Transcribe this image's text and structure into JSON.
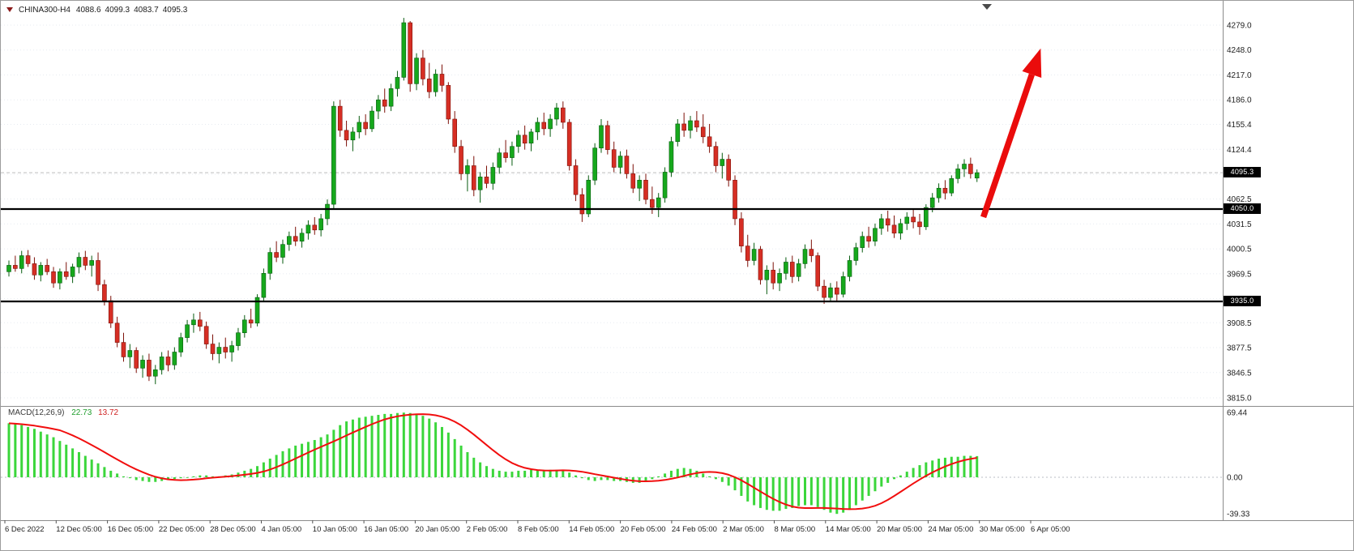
{
  "header": {
    "symbol": "CHINA300-H4",
    "open": "4088.6",
    "high": "4099.3",
    "low": "4083.7",
    "close": "4095.3"
  },
  "macd_panel": {
    "label": "MACD(12,26,9)",
    "macd_value": "22.73",
    "signal_value": "13.72"
  },
  "price_tags": {
    "current": "4095.3",
    "resistance": "4050.0",
    "support": "3935.0"
  },
  "colors": {
    "bull": "#16a81c",
    "bull_border": "#085c10",
    "bear": "#d62e24",
    "bear_border": "#7d1008",
    "histogram": "#3bd63b",
    "signal": "#f10e0e",
    "hline": "#000000",
    "arrow": "#ea0c0c",
    "grid": "#e7ebf1",
    "axis_line": "#8c8c8c",
    "current_price_line": "#bdbdbd",
    "tick_text": "#1e1e1e"
  },
  "chart_data": {
    "type": "candlestick",
    "symbol": "CHINA300",
    "timeframe": "H4",
    "title": "CHINA300-H4  4088.6 4099.3 4083.7 4095.3",
    "price_axis_ticks": [
      4279.0,
      4248.0,
      4217.0,
      4186.0,
      4155.4,
      4124.4,
      4093.4,
      4062.5,
      4031.5,
      4000.5,
      3969.5,
      3938.5,
      3908.5,
      3877.5,
      3846.5,
      3815.0
    ],
    "price_range": {
      "min": 3815.0,
      "max": 4279.0
    },
    "current_price": 4095.3,
    "horizontal_lines": [
      4050.0,
      3935.0
    ],
    "time_axis_labels": [
      "6 Dec 2022",
      "12 Dec 05:00",
      "16 Dec 05:00",
      "22 Dec 05:00",
      "28 Dec 05:00",
      "4 Jan 05:00",
      "10 Jan 05:00",
      "16 Jan 05:00",
      "20 Jan 05:00",
      "2 Feb 05:00",
      "8 Feb 05:00",
      "14 Feb 05:00",
      "20 Feb 05:00",
      "24 Feb 05:00",
      "2 Mar 05:00",
      "8 Mar 05:00",
      "14 Mar 05:00",
      "20 Mar 05:00",
      "24 Mar 05:00",
      "30 Mar 05:00",
      "6 Apr 05:00"
    ],
    "candles_ohlc": [
      [
        3972,
        3986,
        3966,
        3980
      ],
      [
        3980,
        3992,
        3972,
        3976
      ],
      [
        3976,
        3998,
        3970,
        3992
      ],
      [
        3992,
        3999,
        3978,
        3982
      ],
      [
        3982,
        3990,
        3962,
        3968
      ],
      [
        3968,
        3984,
        3960,
        3980
      ],
      [
        3980,
        3988,
        3968,
        3972
      ],
      [
        3972,
        3978,
        3952,
        3958
      ],
      [
        3958,
        3976,
        3950,
        3972
      ],
      [
        3972,
        3984,
        3962,
        3966
      ],
      [
        3966,
        3982,
        3958,
        3978
      ],
      [
        3978,
        3996,
        3970,
        3990
      ],
      [
        3990,
        3998,
        3974,
        3980
      ],
      [
        3980,
        3992,
        3966,
        3986
      ],
      [
        3986,
        3996,
        3948,
        3956
      ],
      [
        3956,
        3962,
        3930,
        3936
      ],
      [
        3936,
        3942,
        3902,
        3908
      ],
      [
        3908,
        3916,
        3878,
        3884
      ],
      [
        3884,
        3896,
        3860,
        3866
      ],
      [
        3866,
        3882,
        3852,
        3874
      ],
      [
        3874,
        3878,
        3846,
        3852
      ],
      [
        3852,
        3868,
        3840,
        3862
      ],
      [
        3862,
        3870,
        3836,
        3842
      ],
      [
        3842,
        3856,
        3832,
        3850
      ],
      [
        3850,
        3872,
        3844,
        3866
      ],
      [
        3866,
        3874,
        3848,
        3856
      ],
      [
        3856,
        3878,
        3850,
        3872
      ],
      [
        3872,
        3896,
        3866,
        3890
      ],
      [
        3890,
        3912,
        3884,
        3906
      ],
      [
        3906,
        3920,
        3896,
        3912
      ],
      [
        3912,
        3922,
        3898,
        3904
      ],
      [
        3904,
        3910,
        3876,
        3882
      ],
      [
        3882,
        3894,
        3862,
        3870
      ],
      [
        3870,
        3884,
        3858,
        3878
      ],
      [
        3878,
        3890,
        3864,
        3872
      ],
      [
        3872,
        3886,
        3860,
        3880
      ],
      [
        3880,
        3902,
        3874,
        3896
      ],
      [
        3896,
        3918,
        3890,
        3912
      ],
      [
        3912,
        3926,
        3902,
        3908
      ],
      [
        3908,
        3944,
        3904,
        3940
      ],
      [
        3940,
        3976,
        3936,
        3970
      ],
      [
        3970,
        4002,
        3962,
        3996
      ],
      [
        3996,
        4010,
        3984,
        3990
      ],
      [
        3990,
        4012,
        3982,
        4006
      ],
      [
        4006,
        4022,
        3998,
        4016
      ],
      [
        4016,
        4028,
        4004,
        4010
      ],
      [
        4010,
        4026,
        4002,
        4020
      ],
      [
        4020,
        4036,
        4012,
        4030
      ],
      [
        4030,
        4040,
        4018,
        4024
      ],
      [
        4024,
        4044,
        4016,
        4038
      ],
      [
        4038,
        4062,
        4030,
        4056
      ],
      [
        4056,
        4184,
        4050,
        4178
      ],
      [
        4178,
        4186,
        4140,
        4148
      ],
      [
        4148,
        4160,
        4128,
        4136
      ],
      [
        4136,
        4152,
        4122,
        4146
      ],
      [
        4146,
        4166,
        4138,
        4158
      ],
      [
        4158,
        4168,
        4142,
        4150
      ],
      [
        4150,
        4178,
        4146,
        4172
      ],
      [
        4172,
        4192,
        4162,
        4186
      ],
      [
        4186,
        4200,
        4170,
        4178
      ],
      [
        4178,
        4206,
        4172,
        4200
      ],
      [
        4200,
        4222,
        4190,
        4214
      ],
      [
        4214,
        4288,
        4210,
        4282
      ],
      [
        4282,
        4284,
        4196,
        4206
      ],
      [
        4206,
        4244,
        4198,
        4238
      ],
      [
        4238,
        4248,
        4204,
        4212
      ],
      [
        4212,
        4232,
        4188,
        4196
      ],
      [
        4196,
        4224,
        4190,
        4218
      ],
      [
        4218,
        4230,
        4196,
        4204
      ],
      [
        4204,
        4208,
        4156,
        4162
      ],
      [
        4162,
        4172,
        4120,
        4128
      ],
      [
        4128,
        4136,
        4086,
        4094
      ],
      [
        4094,
        4112,
        4072,
        4104
      ],
      [
        4104,
        4116,
        4066,
        4074
      ],
      [
        4074,
        4096,
        4058,
        4090
      ],
      [
        4090,
        4104,
        4076,
        4082
      ],
      [
        4082,
        4108,
        4074,
        4102
      ],
      [
        4102,
        4126,
        4094,
        4120
      ],
      [
        4120,
        4136,
        4108,
        4114
      ],
      [
        4114,
        4134,
        4104,
        4128
      ],
      [
        4128,
        4148,
        4120,
        4142
      ],
      [
        4142,
        4154,
        4124,
        4132
      ],
      [
        4132,
        4150,
        4122,
        4146
      ],
      [
        4146,
        4164,
        4136,
        4158
      ],
      [
        4158,
        4170,
        4142,
        4150
      ],
      [
        4150,
        4168,
        4140,
        4162
      ],
      [
        4162,
        4182,
        4154,
        4176
      ],
      [
        4176,
        4184,
        4150,
        4158
      ],
      [
        4158,
        4162,
        4098,
        4104
      ],
      [
        4104,
        4112,
        4060,
        4068
      ],
      [
        4068,
        4076,
        4034,
        4044
      ],
      [
        4044,
        4092,
        4040,
        4086
      ],
      [
        4086,
        4132,
        4080,
        4126
      ],
      [
        4126,
        4162,
        4120,
        4154
      ],
      [
        4154,
        4160,
        4118,
        4124
      ],
      [
        4124,
        4134,
        4096,
        4102
      ],
      [
        4102,
        4122,
        4094,
        4116
      ],
      [
        4116,
        4124,
        4088,
        4094
      ],
      [
        4094,
        4106,
        4070,
        4076
      ],
      [
        4076,
        4092,
        4060,
        4086
      ],
      [
        4086,
        4094,
        4056,
        4062
      ],
      [
        4062,
        4078,
        4044,
        4052
      ],
      [
        4052,
        4070,
        4040,
        4064
      ],
      [
        4064,
        4102,
        4058,
        4096
      ],
      [
        4096,
        4140,
        4090,
        4134
      ],
      [
        4134,
        4162,
        4128,
        4156
      ],
      [
        4156,
        4170,
        4140,
        4148
      ],
      [
        4148,
        4166,
        4138,
        4160
      ],
      [
        4160,
        4172,
        4146,
        4152
      ],
      [
        4152,
        4168,
        4132,
        4140
      ],
      [
        4140,
        4156,
        4120,
        4128
      ],
      [
        4128,
        4134,
        4096,
        4104
      ],
      [
        4104,
        4120,
        4088,
        4112
      ],
      [
        4112,
        4118,
        4078,
        4086
      ],
      [
        4086,
        4092,
        4030,
        4038
      ],
      [
        4038,
        4046,
        3996,
        4004
      ],
      [
        4004,
        4018,
        3978,
        3986
      ],
      [
        3986,
        4008,
        3980,
        4000
      ],
      [
        4000,
        4004,
        3956,
        3962
      ],
      [
        3962,
        3980,
        3944,
        3974
      ],
      [
        3974,
        3984,
        3950,
        3958
      ],
      [
        3958,
        3976,
        3948,
        3970
      ],
      [
        3970,
        3990,
        3962,
        3984
      ],
      [
        3984,
        3992,
        3958,
        3966
      ],
      [
        3966,
        3988,
        3960,
        3982
      ],
      [
        3982,
        4006,
        3976,
        4000
      ],
      [
        4000,
        4012,
        3984,
        3992
      ],
      [
        3992,
        3996,
        3948,
        3954
      ],
      [
        3954,
        3962,
        3932,
        3940
      ],
      [
        3940,
        3958,
        3934,
        3952
      ],
      [
        3952,
        3960,
        3936,
        3944
      ],
      [
        3944,
        3972,
        3940,
        3966
      ],
      [
        3966,
        3992,
        3960,
        3986
      ],
      [
        3986,
        4008,
        3980,
        4002
      ],
      [
        4002,
        4022,
        3996,
        4016
      ],
      [
        4016,
        4028,
        4002,
        4010
      ],
      [
        4010,
        4032,
        4004,
        4026
      ],
      [
        4026,
        4044,
        4018,
        4038
      ],
      [
        4038,
        4048,
        4022,
        4030
      ],
      [
        4030,
        4042,
        4014,
        4020
      ],
      [
        4020,
        4038,
        4012,
        4032
      ],
      [
        4032,
        4046,
        4024,
        4040
      ],
      [
        4040,
        4050,
        4026,
        4034
      ],
      [
        4034,
        4044,
        4018,
        4028
      ],
      [
        4028,
        4056,
        4024,
        4052
      ],
      [
        4052,
        4070,
        4046,
        4064
      ],
      [
        4064,
        4082,
        4058,
        4076
      ],
      [
        4076,
        4086,
        4062,
        4070
      ],
      [
        4070,
        4092,
        4066,
        4088
      ],
      [
        4088,
        4106,
        4082,
        4100
      ],
      [
        4100,
        4112,
        4090,
        4106
      ],
      [
        4106,
        4114,
        4088,
        4094
      ],
      [
        4088.6,
        4099.3,
        4083.7,
        4095.3
      ]
    ],
    "indicator": {
      "name": "MACD",
      "params": [
        12,
        26,
        9
      ],
      "macd_last": 22.73,
      "signal_last": 13.72,
      "signal_sma_period": 9,
      "axis_ticks": [
        69.44,
        0.0,
        -39.33
      ],
      "range": {
        "min": -39.33,
        "max": 69.44
      },
      "histogram": [
        58,
        57,
        56,
        54,
        52,
        49,
        46,
        43,
        39,
        35,
        31,
        27,
        23,
        19,
        15,
        11,
        7,
        4,
        1,
        -1,
        -3,
        -4,
        -5,
        -5,
        -4,
        -3,
        -2,
        -1,
        0,
        1,
        2,
        2,
        1,
        1,
        2,
        3,
        5,
        7,
        9,
        12,
        16,
        20,
        24,
        28,
        31,
        34,
        36,
        38,
        40,
        43,
        46,
        51,
        56,
        60,
        62,
        64,
        65,
        66,
        67,
        68,
        68,
        69,
        69.44,
        69,
        68,
        66,
        63,
        59,
        54,
        48,
        41,
        34,
        27,
        21,
        16,
        12,
        9,
        7,
        6,
        6,
        7,
        7,
        8,
        8,
        8,
        8,
        8,
        7,
        5,
        2,
        -1,
        -3,
        -4,
        -3,
        -3,
        -4,
        -4,
        -5,
        -6,
        -6,
        -4,
        -2,
        1,
        4,
        7,
        9,
        10,
        9,
        7,
        4,
        1,
        -2,
        -5,
        -9,
        -14,
        -20,
        -26,
        -30,
        -33,
        -35,
        -36,
        -36,
        -34,
        -33,
        -31,
        -30,
        -30,
        -32,
        -35,
        -38,
        -39.33,
        -38,
        -35,
        -30,
        -25,
        -20,
        -15,
        -10,
        -6,
        -2,
        2,
        6,
        10,
        13,
        16,
        18,
        20,
        21,
        22,
        22,
        23,
        23,
        22.73
      ]
    },
    "annotations": [
      {
        "type": "up-arrow",
        "color": "#ea0c0c",
        "from": {
          "bar": 153,
          "price": 4040
        },
        "to": {
          "bar": 162,
          "price": 4250
        }
      }
    ]
  }
}
